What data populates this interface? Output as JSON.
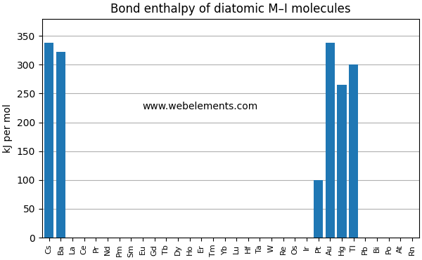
{
  "chart_data": {
    "type": "bar",
    "title": "Bond enthalpy of diatomic M–I molecules",
    "y_label": "kJ per mol",
    "annotations": [
      "www.webelements.com"
    ],
    "categories": [
      "Cs",
      "Ba",
      "La",
      "Ce",
      "Pr",
      "Nd",
      "Pm",
      "Sm",
      "Eu",
      "Gd",
      "Tb",
      "Dy",
      "Ho",
      "Er",
      "Tm",
      "Yb",
      "Lu",
      "Hf",
      "Ta",
      "W",
      "Re",
      "Os",
      "Ir",
      "Pt",
      "Au",
      "Hg",
      "Tl",
      "Pb",
      "Bi",
      "Po",
      "At",
      "Rn"
    ],
    "values": [
      338,
      322,
      0,
      0,
      0,
      0,
      0,
      0,
      0,
      0,
      0,
      0,
      0,
      0,
      0,
      0,
      0,
      0,
      0,
      0,
      0,
      0,
      0,
      100,
      338,
      265,
      300,
      0,
      0,
      0,
      0,
      0
    ],
    "color": "#1f77b4",
    "ylim": [
      0,
      380
    ],
    "yticks": [
      0,
      50,
      100,
      150,
      200,
      250,
      300,
      350
    ],
    "grid": true
  }
}
